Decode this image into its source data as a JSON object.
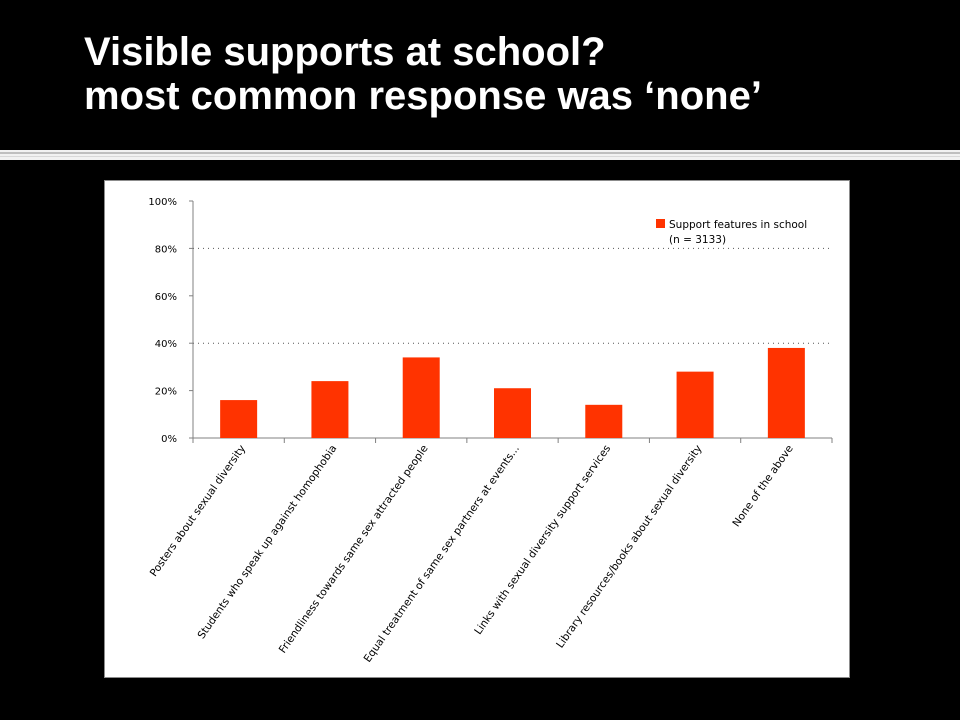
{
  "title": {
    "line1": "Visible supports at school?",
    "line2": "most common response was ‘none’"
  },
  "colors": {
    "bar": "#ff3300",
    "background": "#000000",
    "title_text": "#ffffff"
  },
  "chart_data": {
    "type": "bar",
    "categories": [
      "Posters about sexual diversity",
      "Students who speak up against homophobia",
      "Friendliness towards same sex attracted people",
      "Equal treatment of same sex partners at events...",
      "Links with sexual diversity support services",
      "Library resources/books about sexual diversity",
      "None of the above"
    ],
    "series": [
      {
        "name": "Support features in school",
        "values": [
          16,
          24,
          34,
          21,
          14,
          28,
          38
        ]
      }
    ],
    "legend": {
      "line1": "Support features in school",
      "line2": "(n = 3133)",
      "placement": "top-right"
    },
    "ylim": [
      0,
      100
    ],
    "yticks": [
      "0%",
      "20%",
      "40%",
      "60%",
      "80%",
      "100%"
    ],
    "gridlines_dotted_at": [
      40,
      80
    ],
    "grid": true
  }
}
